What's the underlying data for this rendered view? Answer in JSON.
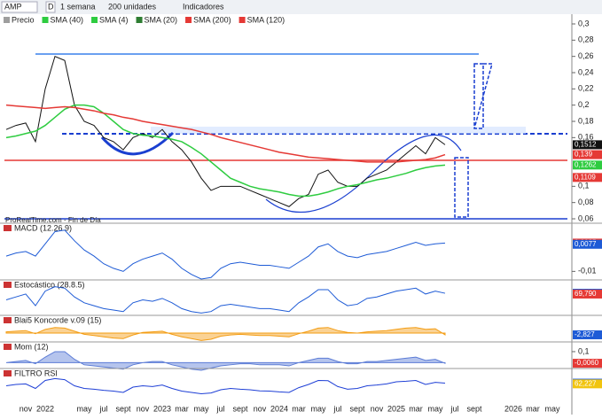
{
  "toolbar": {
    "symbol": "AMP",
    "period_code": "D",
    "period": "1 semana",
    "units": "200 unidades",
    "indicators": "Indicadores"
  },
  "legend": [
    {
      "name": "Precio",
      "color": "#9e9e9e"
    },
    {
      "name": "SMA (40)",
      "color": "#2ecc40"
    },
    {
      "name": "SMA (4)",
      "color": "#2ecc40"
    },
    {
      "name": "SMA (20)",
      "color": "#2e7d32"
    },
    {
      "name": "SMA (200)",
      "color": "#e53935"
    },
    {
      "name": "SMA (120)",
      "color": "#e53935"
    }
  ],
  "source": "ProRealTime.com - Fin de Día",
  "chart_data": [
    {
      "type": "line",
      "categories": [
        null,
        null,
        "nov",
        null,
        "2022",
        null,
        null,
        null,
        "may",
        null,
        "jul",
        null,
        "sept",
        null,
        "nov",
        null,
        "2023",
        null,
        "mar",
        null,
        "may",
        null,
        "jul",
        null,
        "sept",
        null,
        "nov",
        null,
        "2024",
        null,
        "mar",
        null,
        "may",
        null,
        "jul",
        null,
        "sept",
        null,
        "nov",
        null,
        "2025",
        null,
        "mar",
        null,
        "may",
        null,
        "jul",
        null,
        "sept",
        null,
        null,
        null,
        "2026",
        null,
        "mar",
        null,
        "may"
      ],
      "series": [
        {
          "name": "Precio",
          "color": "#111111",
          "values": [
            0.17,
            0.175,
            0.178,
            0.155,
            0.22,
            0.26,
            0.255,
            0.2,
            0.18,
            0.175,
            0.16,
            0.155,
            0.145,
            0.16,
            0.165,
            0.16,
            0.17,
            0.155,
            0.145,
            0.13,
            0.11,
            0.095,
            0.1,
            0.1,
            0.1,
            0.095,
            0.09,
            0.085,
            0.08,
            0.075,
            0.085,
            0.09,
            0.115,
            0.12,
            0.105,
            0.1,
            0.1,
            0.11,
            0.115,
            0.12,
            0.13,
            0.14,
            0.15,
            0.14,
            0.16,
            0.1512,
            null,
            null,
            null,
            null,
            null,
            null,
            null,
            null,
            null,
            null,
            null
          ]
        },
        {
          "name": "SMA (40)",
          "color": "#2ecc40",
          "values": [
            0.16,
            0.162,
            0.165,
            0.168,
            0.175,
            0.185,
            0.195,
            0.2,
            0.2,
            0.198,
            0.19,
            0.18,
            0.17,
            0.165,
            0.163,
            0.162,
            0.16,
            0.158,
            0.155,
            0.148,
            0.14,
            0.13,
            0.12,
            0.11,
            0.105,
            0.1,
            0.097,
            0.095,
            0.093,
            0.09,
            0.088,
            0.088,
            0.09,
            0.093,
            0.097,
            0.1,
            0.102,
            0.105,
            0.108,
            0.11,
            0.113,
            0.116,
            0.12,
            0.123,
            0.125,
            0.1262,
            null,
            null,
            null,
            null,
            null,
            null,
            null,
            null,
            null,
            null,
            null
          ]
        },
        {
          "name": "SMA (200)",
          "color": "#e53935",
          "values": [
            0.2,
            0.199,
            0.198,
            0.197,
            0.196,
            0.197,
            0.198,
            0.197,
            0.195,
            0.193,
            0.19,
            0.188,
            0.185,
            0.183,
            0.18,
            0.178,
            0.176,
            0.174,
            0.172,
            0.17,
            0.167,
            0.164,
            0.16,
            0.157,
            0.154,
            0.151,
            0.148,
            0.145,
            0.142,
            0.14,
            0.138,
            0.136,
            0.135,
            0.134,
            0.133,
            0.132,
            0.131,
            0.13,
            0.13,
            0.13,
            0.13,
            0.131,
            0.132,
            0.133,
            0.135,
            0.139,
            null,
            null,
            null,
            null,
            null,
            null,
            null,
            null,
            null,
            null,
            null
          ]
        }
      ],
      "ylim": [
        0.06,
        0.3
      ],
      "yticks": [
        {
          "value": 0.3,
          "label": "0,3"
        },
        {
          "value": 0.28,
          "label": "0,28"
        },
        {
          "value": 0.26,
          "label": "0,26"
        },
        {
          "value": 0.24,
          "label": "0,24"
        },
        {
          "value": 0.22,
          "label": "0,22"
        },
        {
          "value": 0.2,
          "label": "0,2"
        },
        {
          "value": 0.18,
          "label": "0,18"
        },
        {
          "value": 0.16,
          "label": "0,16"
        },
        {
          "value": 0.1,
          "label": "0,1"
        },
        {
          "value": 0.08,
          "label": "0,08"
        },
        {
          "value": 0.06,
          "label": "0,06"
        }
      ],
      "last_values": [
        {
          "value": 0.1512,
          "label": "0,1512",
          "color": "#111111"
        },
        {
          "value": 0.139,
          "label": "0,139",
          "color": "#e53935"
        },
        {
          "value": 0.1262,
          "label": "0,1262",
          "color": "#2ecc40"
        },
        {
          "value": 0.1109,
          "label": "0,1109",
          "color": "#e53935"
        }
      ]
    },
    {
      "type": "line",
      "title": "MACD (12.26.9)",
      "series": [
        {
          "name": "MACD",
          "color": "#1e5bd6",
          "values": [
            0,
            0.002,
            0.003,
            0,
            0.008,
            0.016,
            0.017,
            0.01,
            0.004,
            0,
            -0.005,
            -0.008,
            -0.01,
            -0.005,
            -0.002,
            0,
            0.002,
            -0.002,
            -0.008,
            -0.012,
            -0.015,
            -0.014,
            -0.008,
            -0.005,
            -0.004,
            -0.005,
            -0.006,
            -0.006,
            -0.007,
            -0.008,
            -0.004,
            0,
            0.006,
            0.008,
            0.003,
            0,
            -0.001,
            0.001,
            0.002,
            0.003,
            0.005,
            0.007,
            0.009,
            0.007,
            0.008,
            0.0085,
            null,
            null,
            null,
            null,
            null,
            null,
            null,
            null,
            null,
            null,
            null
          ]
        }
      ],
      "ylim": [
        -0.015,
        0.018
      ],
      "yticks": [
        {
          "value": -0.01,
          "label": "-0,01"
        }
      ],
      "last_values": [
        {
          "value": 0.0085,
          "label": "0,0085",
          "color": "#e53935"
        },
        {
          "value": 0.0077,
          "label": "0,0077",
          "color": "#1e5bd6"
        }
      ]
    },
    {
      "type": "line",
      "title": "Estocástico (28.8.5)",
      "series": [
        {
          "name": "Estocástico",
          "color": "#1e5bd6",
          "values": [
            50,
            60,
            70,
            30,
            80,
            95,
            90,
            60,
            40,
            30,
            20,
            15,
            10,
            40,
            50,
            45,
            55,
            40,
            20,
            10,
            5,
            10,
            30,
            35,
            30,
            25,
            20,
            20,
            15,
            10,
            40,
            60,
            85,
            85,
            50,
            30,
            35,
            55,
            60,
            70,
            80,
            85,
            90,
            70,
            80,
            72.564,
            null,
            null,
            null,
            null,
            null,
            null,
            null,
            null,
            null,
            null,
            null
          ]
        }
      ],
      "ylim": [
        0,
        100
      ],
      "yticks": [],
      "last_values": [
        {
          "value": 72.564,
          "label": "72,564",
          "color": "#1e5bd6"
        },
        {
          "value": 69.79,
          "label": "69,790",
          "color": "#e53935"
        }
      ]
    },
    {
      "type": "area",
      "title": "Blai5 Koncorde v.09 (15)",
      "series": [
        {
          "name": "Koncorde",
          "color": "#f39c12",
          "values": [
            2,
            3,
            4,
            -1,
            6,
            9,
            8,
            3,
            -2,
            -4,
            -6,
            -8,
            -9,
            -3,
            1,
            2,
            3,
            -2,
            -6,
            -9,
            -12,
            -10,
            -5,
            -3,
            -2,
            -3,
            -4,
            -4,
            -5,
            -6,
            -1,
            3,
            8,
            9,
            4,
            1,
            0,
            2,
            3,
            4,
            6,
            8,
            9,
            6,
            7,
            -2.827,
            null,
            null,
            null,
            null,
            null,
            null,
            null,
            null,
            null,
            null,
            null
          ]
        }
      ],
      "ylim": [
        -20,
        20
      ],
      "yticks": [],
      "last_values": [
        {
          "value": -2.827,
          "label": "-2,827",
          "color": "#1e5bd6"
        }
      ]
    },
    {
      "type": "area",
      "title": "Mom (12)",
      "series": [
        {
          "name": "Mom",
          "color": "#5c7cd6",
          "values": [
            0,
            0.01,
            0.02,
            -0.01,
            0.05,
            0.1,
            0.1,
            0.03,
            -0.02,
            -0.03,
            -0.04,
            -0.05,
            -0.06,
            -0.02,
            0,
            0.01,
            0.01,
            -0.02,
            -0.04,
            -0.06,
            -0.07,
            -0.05,
            -0.03,
            -0.02,
            -0.01,
            -0.01,
            -0.02,
            -0.02,
            -0.02,
            -0.03,
            0,
            0.02,
            0.04,
            0.04,
            0.01,
            -0.01,
            -0.01,
            0.01,
            0.01,
            0.02,
            0.03,
            0.04,
            0.05,
            0.02,
            0.03,
            -0.006,
            null,
            null,
            null,
            null,
            null,
            null,
            null,
            null,
            null,
            null,
            null
          ]
        }
      ],
      "ylim": [
        -0.07,
        0.14
      ],
      "yticks": [
        {
          "value": 0.1,
          "label": "0,1"
        }
      ],
      "last_values": [
        {
          "value": -0.006,
          "label": "-0,0060",
          "color": "#e53935"
        }
      ]
    },
    {
      "type": "line",
      "title": "FILTRO RSI",
      "series": [
        {
          "name": "RSI",
          "color": "#1e3fd6",
          "values": [
            55,
            60,
            62,
            45,
            75,
            82,
            78,
            55,
            45,
            42,
            38,
            35,
            30,
            50,
            55,
            52,
            58,
            45,
            35,
            30,
            25,
            28,
            40,
            45,
            42,
            40,
            36,
            35,
            32,
            30,
            48,
            60,
            75,
            74,
            52,
            42,
            45,
            55,
            58,
            62,
            70,
            72,
            75,
            60,
            68,
            64.867,
            null,
            null,
            null,
            null,
            null,
            null,
            null,
            null,
            null,
            null,
            null
          ]
        }
      ],
      "ylim": [
        0,
        100
      ],
      "yticks": [],
      "last_values": [
        {
          "value": 64.867,
          "label": "64,867",
          "color": "#1e5bd6"
        },
        {
          "value": 62.227,
          "label": "62,227",
          "color": "#f1c40f"
        }
      ]
    }
  ]
}
